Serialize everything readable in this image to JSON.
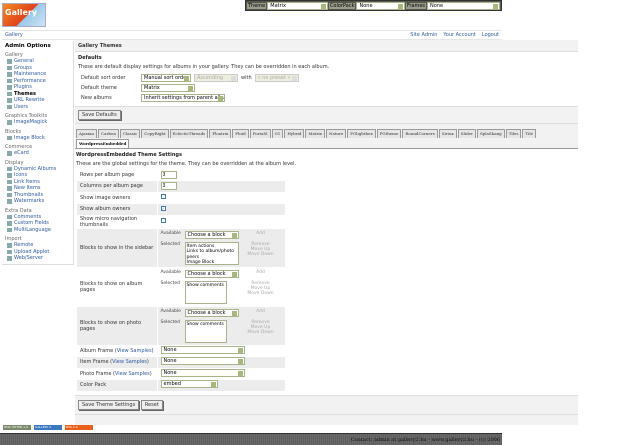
{
  "topbar": {
    "theme_label": "Theme",
    "theme_value": "Matrix",
    "colorpack_label": "ColorPack",
    "colorpack_value": "None",
    "frames_label": "Frames",
    "frames_value": "None"
  },
  "logo": {
    "text": "Gallery"
  },
  "breadcrumb": {
    "gallery": "Gallery",
    "site_admin": "Site Admin",
    "your_account": "Your Account",
    "logout": "Logout"
  },
  "sidebar": {
    "title": "Admin Options",
    "groups": [
      {
        "label": "Gallery",
        "items": [
          "General",
          "Groups",
          "Maintenance",
          "Performance",
          "Plugins",
          "Themes",
          "URL Rewrite",
          "Users"
        ]
      },
      {
        "label": "Graphics Toolkits",
        "items": [
          "ImageMagick"
        ]
      },
      {
        "label": "Blocks",
        "items": [
          "Image Block"
        ]
      },
      {
        "label": "Commerce",
        "items": [
          "eCard"
        ]
      },
      {
        "label": "Display",
        "items": [
          "Dynamic Albums",
          "Icons",
          "Link Items",
          "New Items",
          "Thumbnails",
          "Watermarks"
        ]
      },
      {
        "label": "Extra Data",
        "items": [
          "Comments",
          "Custom Fields",
          "MultiLanguage"
        ]
      },
      {
        "label": "Import",
        "items": [
          "Remote",
          "Upload Applet",
          "Web/Server"
        ]
      }
    ]
  },
  "main": {
    "title": "Gallery Themes",
    "defaults": {
      "heading": "Defaults",
      "description": "These are default display settings for albums in your gallery. They can be overridden in each album.",
      "sort_label": "Default sort order",
      "sort_value": "Manual sort order",
      "direction_value": "Ascending",
      "with_label": "with",
      "preset_value": "« no preset »",
      "theme_label": "Default theme",
      "theme_value": "Matrix",
      "new_albums_label": "New albums",
      "new_albums_value": "Inherit settings from parent album",
      "save_button": "Save Defaults"
    },
    "tabs": [
      "Ajaxian",
      "Carbon",
      "Classic",
      "CopyRight",
      "EclecticThreads",
      "Floatrix",
      "Fluid",
      "PortalS",
      "G1",
      "Hybrid",
      "Matrix",
      "Nature",
      "PGlightbox",
      "PGtheme",
      "RoundCorners",
      "Siriux",
      "Slider",
      "SplaShang",
      "Tiles",
      "Tile",
      "WordpressEmbedded"
    ],
    "active_tab": "WordpressEmbedded",
    "theme_settings": {
      "heading": "WordpressEmbedded Theme Settings",
      "description": "These are the global settings for the theme. They can be overridden at the album level.",
      "rows_label": "Rows per album page",
      "rows_value": "3",
      "cols_label": "Columns per album page",
      "cols_value": "3",
      "image_owners_label": "Show image owners",
      "image_owners": false,
      "album_owners_label": "Show album owners",
      "album_owners": true,
      "micro_nav_label": "Show micro navigation thumbnails",
      "micro_nav": false,
      "available_label": "Available",
      "selected_label": "Selected",
      "choose_block": "Choose a block",
      "add": "Add",
      "remove": "Remove",
      "move_up": "Move Up",
      "move_down": "Move Down",
      "sidebar_blocks_label": "Blocks to show in the sidebar",
      "sidebar_blocks": "Item actions\nLinks to album/photo peers\nImage Block",
      "album_blocks_label": "Blocks to show on album pages",
      "album_blocks": "Show comments",
      "photo_blocks_label": "Blocks to show on photo pages",
      "photo_blocks": "Show comments",
      "album_frame_label": "Album Frame",
      "item_frame_label": "Item Frame",
      "photo_frame_label": "Photo Frame",
      "view_samples": "View Samples",
      "album_frame": "None",
      "item_frame": "None",
      "photo_frame": "None",
      "colorpack_label": "Color Pack",
      "colorpack": "embed",
      "save_button": "Save Theme Settings",
      "reset_button": "Reset"
    }
  },
  "badges": [
    "W3C XHTML 1.0",
    "GALLERY 2",
    "RSS 2.0"
  ],
  "footer": {
    "text": "Contact: admin at gallery2.hu - www.gallery2.hu - (c) 2006"
  }
}
